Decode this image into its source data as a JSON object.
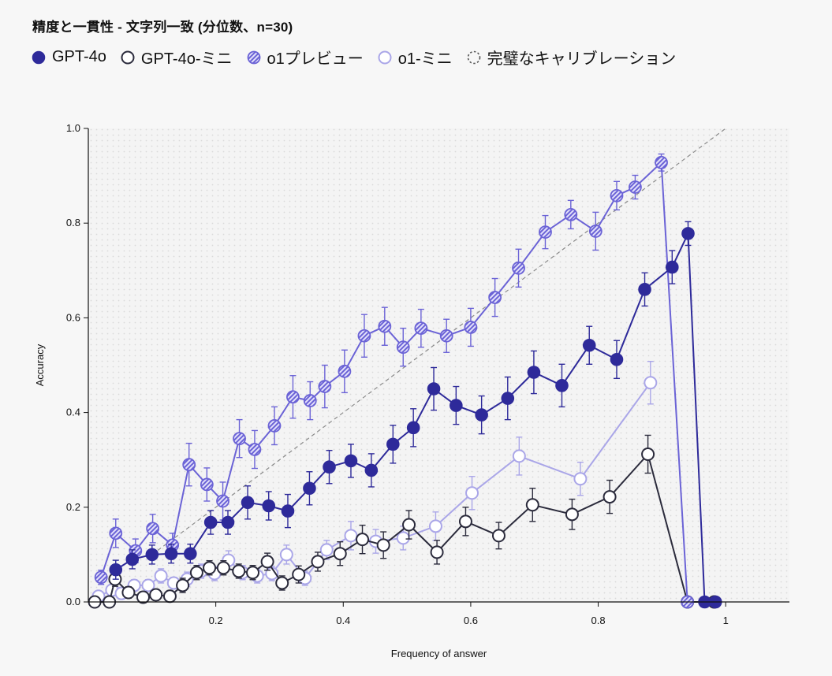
{
  "chart_data": {
    "type": "line",
    "title": "精度と一貫性 - 文字列一致 (分位数、n=30)",
    "xlabel": "Frequency of answer",
    "ylabel": "Accuracy",
    "xlim": [
      0.0,
      1.1
    ],
    "ylim": [
      0.0,
      1.0
    ],
    "x_ticks": [
      {
        "value": 0.2,
        "label": "0.2"
      },
      {
        "value": 0.4,
        "label": "0.4"
      },
      {
        "value": 0.6,
        "label": "0.6"
      },
      {
        "value": 0.8,
        "label": "0.8"
      },
      {
        "value": 1.0,
        "label": "1"
      }
    ],
    "y_ticks": [
      {
        "value": 0.0,
        "label": "0.0"
      },
      {
        "value": 0.2,
        "label": "0.2"
      },
      {
        "value": 0.4,
        "label": "0.4"
      },
      {
        "value": 0.6,
        "label": "0.6"
      },
      {
        "value": 0.8,
        "label": "0.8"
      },
      {
        "value": 1.0,
        "label": "1.0"
      }
    ],
    "grid": false,
    "legend_position": "top-left",
    "reference_line": {
      "name": "完璧なキャリブレーション",
      "from": [
        0.1,
        0.1
      ],
      "to": [
        1.0,
        1.0
      ],
      "style": "dashed",
      "color": "#8a8a8a"
    },
    "series": [
      {
        "name": "GPT-4o",
        "marker": "filled",
        "color": "#2e2a9a",
        "x": [
          0.043,
          0.069,
          0.1,
          0.13,
          0.16,
          0.192,
          0.219,
          0.25,
          0.283,
          0.313,
          0.347,
          0.378,
          0.412,
          0.444,
          0.478,
          0.51,
          0.542,
          0.577,
          0.617,
          0.658,
          0.699,
          0.743,
          0.786,
          0.829,
          0.873,
          0.916,
          0.941,
          0.967,
          0.984
        ],
        "y": [
          0.068,
          0.09,
          0.1,
          0.102,
          0.102,
          0.168,
          0.168,
          0.21,
          0.203,
          0.192,
          0.24,
          0.285,
          0.298,
          0.278,
          0.333,
          0.368,
          0.45,
          0.415,
          0.395,
          0.43,
          0.485,
          0.457,
          0.542,
          0.512,
          0.66,
          0.707,
          0.778,
          0.0,
          0.0
        ],
        "err": [
          0.02,
          0.02,
          0.02,
          0.02,
          0.02,
          0.025,
          0.025,
          0.035,
          0.03,
          0.035,
          0.035,
          0.035,
          0.035,
          0.035,
          0.04,
          0.04,
          0.045,
          0.04,
          0.04,
          0.045,
          0.045,
          0.045,
          0.04,
          0.04,
          0.035,
          0.035,
          0.025,
          0.0,
          0.0
        ]
      },
      {
        "name": "GPT-4o-ミニ",
        "marker": "hollow",
        "color": "#2b2b3c",
        "x": [
          0.01,
          0.033,
          0.042,
          0.063,
          0.086,
          0.106,
          0.128,
          0.148,
          0.17,
          0.19,
          0.212,
          0.236,
          0.258,
          0.281,
          0.304,
          0.33,
          0.36,
          0.395,
          0.43,
          0.463,
          0.503,
          0.547,
          0.592,
          0.644,
          0.697,
          0.759,
          0.818,
          0.878,
          0.94,
          0.982
        ],
        "y": [
          0.0,
          0.0,
          0.048,
          0.02,
          0.01,
          0.015,
          0.012,
          0.035,
          0.062,
          0.072,
          0.072,
          0.065,
          0.062,
          0.085,
          0.04,
          0.058,
          0.085,
          0.102,
          0.132,
          0.12,
          0.163,
          0.105,
          0.17,
          0.14,
          0.205,
          0.185,
          0.222,
          0.312,
          0.0,
          0.0
        ],
        "err": [
          0.0,
          0.0,
          0.015,
          0.012,
          0.012,
          0.012,
          0.012,
          0.015,
          0.015,
          0.015,
          0.015,
          0.015,
          0.015,
          0.018,
          0.015,
          0.018,
          0.02,
          0.025,
          0.03,
          0.028,
          0.03,
          0.025,
          0.03,
          0.028,
          0.035,
          0.032,
          0.035,
          0.04,
          0.0,
          0.0
        ]
      },
      {
        "name": "o1プレビュー",
        "marker": "hatched",
        "color": "#6b63d6",
        "x": [
          0.02,
          0.043,
          0.074,
          0.101,
          0.132,
          0.158,
          0.186,
          0.211,
          0.237,
          0.261,
          0.292,
          0.321,
          0.348,
          0.371,
          0.402,
          0.433,
          0.465,
          0.494,
          0.522,
          0.562,
          0.6,
          0.638,
          0.675,
          0.717,
          0.757,
          0.796,
          0.829,
          0.858,
          0.899,
          0.94
        ],
        "y": [
          0.052,
          0.145,
          0.108,
          0.155,
          0.12,
          0.29,
          0.248,
          0.213,
          0.345,
          0.322,
          0.372,
          0.433,
          0.425,
          0.455,
          0.487,
          0.562,
          0.582,
          0.538,
          0.578,
          0.562,
          0.58,
          0.643,
          0.705,
          0.781,
          0.818,
          0.783,
          0.858,
          0.876,
          0.928,
          0.0
        ],
        "err": [
          0.015,
          0.03,
          0.025,
          0.03,
          0.025,
          0.045,
          0.035,
          0.04,
          0.04,
          0.04,
          0.04,
          0.045,
          0.04,
          0.045,
          0.045,
          0.045,
          0.04,
          0.04,
          0.04,
          0.035,
          0.04,
          0.04,
          0.04,
          0.035,
          0.03,
          0.04,
          0.03,
          0.025,
          0.018,
          0.0
        ]
      },
      {
        "name": "o1-ミニ",
        "marker": "hollow-light",
        "color": "#aaa6e8",
        "x": [
          0.016,
          0.037,
          0.052,
          0.072,
          0.094,
          0.114,
          0.134,
          0.155,
          0.177,
          0.198,
          0.22,
          0.242,
          0.265,
          0.288,
          0.311,
          0.34,
          0.374,
          0.412,
          0.451,
          0.494,
          0.545,
          0.602,
          0.676,
          0.772,
          0.882
        ],
        "y": [
          0.012,
          0.025,
          0.018,
          0.035,
          0.035,
          0.055,
          0.04,
          0.048,
          0.065,
          0.06,
          0.088,
          0.062,
          0.055,
          0.06,
          0.1,
          0.05,
          0.11,
          0.14,
          0.128,
          0.135,
          0.16,
          0.23,
          0.308,
          0.26,
          0.463
        ],
        "err": [
          0.01,
          0.012,
          0.012,
          0.012,
          0.012,
          0.015,
          0.012,
          0.015,
          0.015,
          0.015,
          0.02,
          0.015,
          0.015,
          0.015,
          0.02,
          0.015,
          0.02,
          0.03,
          0.025,
          0.025,
          0.03,
          0.035,
          0.04,
          0.035,
          0.045
        ]
      }
    ]
  }
}
